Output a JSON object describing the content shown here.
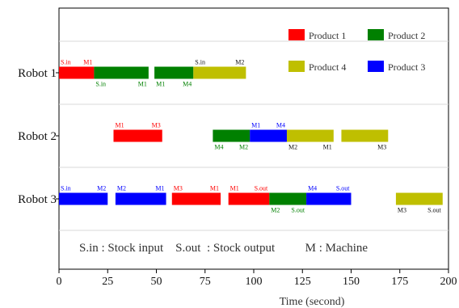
{
  "chart_data": {
    "type": "gantt",
    "xlabel": "Time (second)",
    "xlim": [
      0,
      200
    ],
    "xticks": [
      "0",
      "25",
      "50",
      "75",
      "100",
      "125",
      "150",
      "175",
      "200"
    ],
    "rows": [
      "Robot 1",
      "Robot 2",
      "Robot 3"
    ],
    "annotation": "S.in : Stock input    S.out  : Stock output          M : Machine",
    "series": [
      {
        "name": "Product 1",
        "color": "#ff0000"
      },
      {
        "name": "Product 2",
        "color": "#008000"
      },
      {
        "name": "Product 4",
        "color": "#bfbf00"
      },
      {
        "name": "Product 3",
        "color": "#0000ff"
      }
    ],
    "tasks": [
      {
        "row": "Robot 1",
        "product": "Product 1",
        "start": 0,
        "end": 18,
        "label_start": "S.in",
        "label_end": "M1"
      },
      {
        "row": "Robot 1",
        "product": "Product 2",
        "start": 18,
        "end": 46,
        "label_start": "S.in",
        "label_end": "M1"
      },
      {
        "row": "Robot 1",
        "product": "Product 2",
        "start": 49,
        "end": 69,
        "label_start": "M1",
        "label_end": "M4"
      },
      {
        "row": "Robot 1",
        "product": "Product 4",
        "start": 69,
        "end": 96,
        "label_start": "S.in",
        "label_end": "M2"
      },
      {
        "row": "Robot 2",
        "product": "Product 1",
        "start": 28,
        "end": 53,
        "label_start": "M1",
        "label_end": "M3"
      },
      {
        "row": "Robot 2",
        "product": "Product 2",
        "start": 79,
        "end": 98,
        "label_start": "M4",
        "label_end": "M2"
      },
      {
        "row": "Robot 2",
        "product": "Product 3",
        "start": 98,
        "end": 117,
        "label_start": "M1",
        "label_end": "M4"
      },
      {
        "row": "Robot 2",
        "product": "Product 4",
        "start": 117,
        "end": 141,
        "label_start": "M2",
        "label_end": "M1"
      },
      {
        "row": "Robot 2",
        "product": "Product 4",
        "start": 145,
        "end": 169,
        "label_start": "",
        "label_end": "M3"
      },
      {
        "row": "Robot 3",
        "product": "Product 3",
        "start": 0,
        "end": 25,
        "label_start": "S.in",
        "label_end": "M2"
      },
      {
        "row": "Robot 3",
        "product": "Product 3",
        "start": 29,
        "end": 55,
        "label_start": "M2",
        "label_end": "M1"
      },
      {
        "row": "Robot 3",
        "product": "Product 1",
        "start": 58,
        "end": 83,
        "label_start": "M3",
        "label_end": "M1"
      },
      {
        "row": "Robot 3",
        "product": "Product 1",
        "start": 87,
        "end": 108,
        "label_start": "M1",
        "label_end": "S.out"
      },
      {
        "row": "Robot 3",
        "product": "Product 2",
        "start": 108,
        "end": 127,
        "label_start": "M2",
        "label_end": "S.out"
      },
      {
        "row": "Robot 3",
        "product": "Product 3",
        "start": 127,
        "end": 150,
        "label_start": "M4",
        "label_end": "S.out"
      },
      {
        "row": "Robot 3",
        "product": "Product 4",
        "start": 173,
        "end": 197,
        "label_start": "M3",
        "label_end": "S.out"
      }
    ]
  }
}
